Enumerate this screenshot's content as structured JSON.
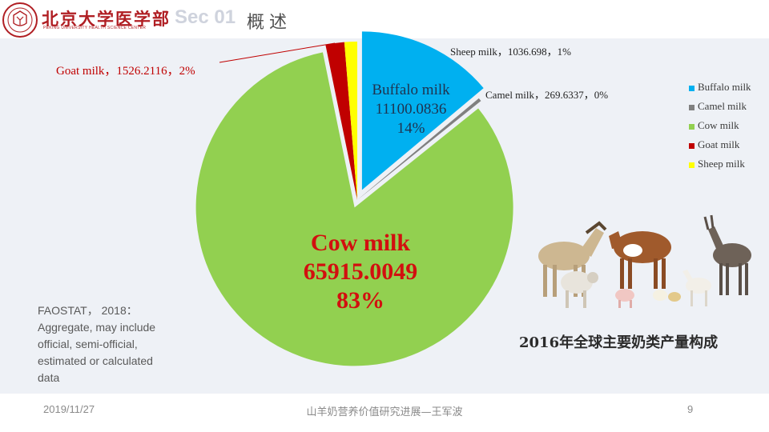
{
  "header": {
    "university_name": "北京大学医学部",
    "university_name_en": "PEKING UNIVERSITY HEALTH SCIENCE CENTER",
    "section_number": "Sec 01",
    "section_title": "概述"
  },
  "chart_data": {
    "type": "pie",
    "title": "",
    "categories": [
      "Buffalo milk",
      "Camel milk",
      "Cow milk",
      "Goat milk",
      "Sheep milk"
    ],
    "values": [
      11100.0836,
      269.6337,
      65915.0049,
      1526.2116,
      1036.698
    ],
    "percents": [
      "14%",
      "0%",
      "83%",
      "2%",
      "1%"
    ],
    "colors": [
      "#00b0f0",
      "#808080",
      "#92d050",
      "#c00000",
      "#ffff00"
    ],
    "exploded": true,
    "legend_position": "right",
    "labels": {
      "buffalo": [
        "Buffalo milk",
        "11100.0836",
        "14%"
      ],
      "cow": [
        "Cow milk",
        "65915.0049",
        "83%"
      ],
      "goat": "Goat milk，1526.2116，2%",
      "sheep": "Sheep milk，1036.698，1%",
      "camel": "Camel milk，269.6337，0%"
    }
  },
  "source_note": [
    "FAOSTAT， 2018：",
    "Aggregate, may include",
    "official, semi-official,",
    "estimated or calculated",
    "data"
  ],
  "caption": "2016年全球主要奶类产量构成",
  "footer": {
    "date": "2019/11/27",
    "title": "山羊奶营养价值研究进展—王军波",
    "page": "9"
  }
}
